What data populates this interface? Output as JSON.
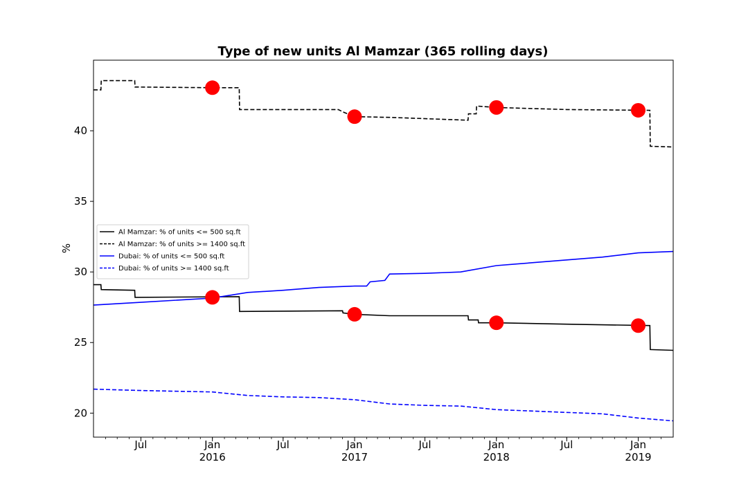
{
  "chart_data": {
    "type": "line",
    "title": "Type of new units Al Mamzar (365 rolling days)",
    "xlabel": "",
    "ylabel": "%",
    "xlim": [
      "2015-03-01",
      "2019-04-01"
    ],
    "ylim": [
      18.3,
      45.0
    ],
    "yticks": [
      20,
      25,
      30,
      35,
      40
    ],
    "xticks": [
      {
        "date": "2015-07-01",
        "label": "Jul",
        "sublabel": ""
      },
      {
        "date": "2016-01-01",
        "label": "Jan",
        "sublabel": "2016"
      },
      {
        "date": "2016-07-01",
        "label": "Jul",
        "sublabel": ""
      },
      {
        "date": "2017-01-01",
        "label": "Jan",
        "sublabel": "2017"
      },
      {
        "date": "2017-07-01",
        "label": "Jul",
        "sublabel": ""
      },
      {
        "date": "2018-01-01",
        "label": "Jan",
        "sublabel": "2018"
      },
      {
        "date": "2018-07-01",
        "label": "Jul",
        "sublabel": ""
      },
      {
        "date": "2019-01-01",
        "label": "Jan",
        "sublabel": "2019"
      }
    ],
    "grid": false,
    "legend_position": "center-left",
    "series": [
      {
        "name": "Al Mamzar: % of units <= 500 sq.ft",
        "color": "#000000",
        "dashed": false,
        "points": [
          [
            "2015-03-01",
            29.1
          ],
          [
            "2015-03-20",
            29.1
          ],
          [
            "2015-03-21",
            28.75
          ],
          [
            "2015-06-15",
            28.7
          ],
          [
            "2015-06-16",
            28.2
          ],
          [
            "2016-03-10",
            28.25
          ],
          [
            "2016-03-11",
            27.2
          ],
          [
            "2016-12-01",
            27.25
          ],
          [
            "2016-12-02",
            27.1
          ],
          [
            "2017-01-01",
            27.0
          ],
          [
            "2017-04-01",
            26.9
          ],
          [
            "2017-07-01",
            26.9
          ],
          [
            "2017-10-20",
            26.9
          ],
          [
            "2017-10-21",
            26.6
          ],
          [
            "2017-11-15",
            26.6
          ],
          [
            "2017-11-16",
            26.4
          ],
          [
            "2018-01-01",
            26.4
          ],
          [
            "2018-07-01",
            26.3
          ],
          [
            "2019-01-31",
            26.2
          ],
          [
            "2019-02-01",
            24.5
          ],
          [
            "2019-04-01",
            24.45
          ]
        ]
      },
      {
        "name": "Al Mamzar: % of units >= 1400 sq.ft",
        "color": "#000000",
        "dashed": true,
        "points": [
          [
            "2015-03-01",
            42.9
          ],
          [
            "2015-03-20",
            42.9
          ],
          [
            "2015-03-21",
            43.55
          ],
          [
            "2015-06-15",
            43.55
          ],
          [
            "2015-06-16",
            43.1
          ],
          [
            "2016-01-01",
            43.05
          ],
          [
            "2016-03-10",
            43.05
          ],
          [
            "2016-03-11",
            41.5
          ],
          [
            "2016-11-20",
            41.5
          ],
          [
            "2016-12-05",
            41.3
          ],
          [
            "2017-01-01",
            41.0
          ],
          [
            "2017-04-01",
            40.95
          ],
          [
            "2017-10-20",
            40.75
          ],
          [
            "2017-10-21",
            41.2
          ],
          [
            "2017-11-10",
            41.2
          ],
          [
            "2017-11-11",
            41.75
          ],
          [
            "2018-01-01",
            41.65
          ],
          [
            "2018-07-01",
            41.5
          ],
          [
            "2019-01-31",
            41.45
          ],
          [
            "2019-02-01",
            38.9
          ],
          [
            "2019-04-01",
            38.85
          ]
        ]
      },
      {
        "name": "Dubai: % of units <= 500 sq.ft",
        "color": "#0000ff",
        "dashed": false,
        "points": [
          [
            "2015-03-01",
            27.65
          ],
          [
            "2015-07-01",
            27.85
          ],
          [
            "2016-01-01",
            28.15
          ],
          [
            "2016-04-01",
            28.55
          ],
          [
            "2016-07-01",
            28.7
          ],
          [
            "2016-10-01",
            28.9
          ],
          [
            "2017-01-01",
            29.0
          ],
          [
            "2017-02-01",
            29.0
          ],
          [
            "2017-02-10",
            29.3
          ],
          [
            "2017-03-20",
            29.4
          ],
          [
            "2017-04-01",
            29.85
          ],
          [
            "2017-07-01",
            29.9
          ],
          [
            "2017-10-01",
            30.0
          ],
          [
            "2018-01-01",
            30.45
          ],
          [
            "2018-07-01",
            30.85
          ],
          [
            "2018-10-01",
            31.05
          ],
          [
            "2019-01-01",
            31.35
          ],
          [
            "2019-04-01",
            31.45
          ]
        ]
      },
      {
        "name": "Dubai: % of units >= 1400 sq.ft",
        "color": "#0000ff",
        "dashed": true,
        "points": [
          [
            "2015-03-01",
            21.7
          ],
          [
            "2015-07-01",
            21.6
          ],
          [
            "2016-01-01",
            21.5
          ],
          [
            "2016-04-01",
            21.25
          ],
          [
            "2016-07-01",
            21.15
          ],
          [
            "2016-10-01",
            21.1
          ],
          [
            "2017-01-01",
            20.95
          ],
          [
            "2017-04-01",
            20.65
          ],
          [
            "2017-07-01",
            20.55
          ],
          [
            "2017-10-01",
            20.5
          ],
          [
            "2018-01-01",
            20.25
          ],
          [
            "2018-07-01",
            20.05
          ],
          [
            "2018-10-01",
            19.95
          ],
          [
            "2019-01-01",
            19.65
          ],
          [
            "2019-04-01",
            19.45
          ]
        ]
      }
    ],
    "markers": {
      "color": "#ff0000",
      "points": [
        [
          "2016-01-01",
          43.05
        ],
        [
          "2017-01-01",
          41.0
        ],
        [
          "2018-01-01",
          41.65
        ],
        [
          "2019-01-01",
          41.45
        ],
        [
          "2016-01-01",
          28.2
        ],
        [
          "2017-01-01",
          27.0
        ],
        [
          "2018-01-01",
          26.4
        ],
        [
          "2019-01-01",
          26.2
        ]
      ]
    }
  }
}
